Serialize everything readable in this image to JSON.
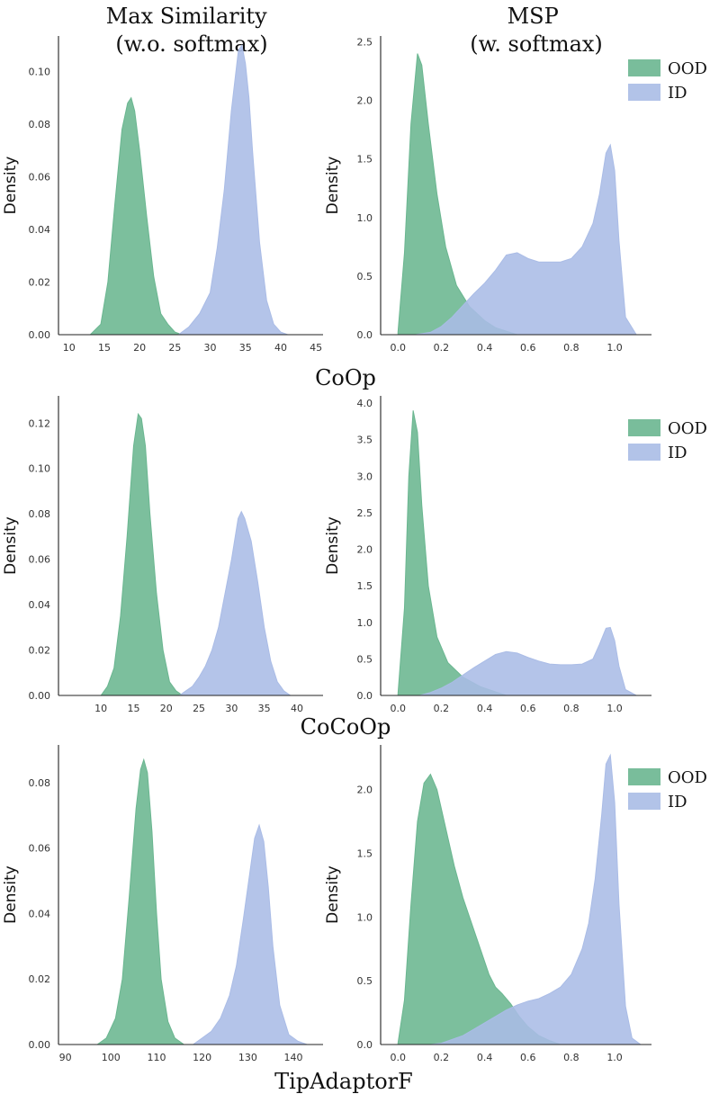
{
  "column_titles": [
    "Max Similarity\n(w.o. softmax)",
    "MSP\n(w. softmax)"
  ],
  "row_titles": [
    "CoOp",
    "CoCoOp",
    "TipAdaptorF"
  ],
  "colors": {
    "OOD": "#6ab690",
    "ID": "#aabce6"
  },
  "chart_data": [
    {
      "type": "area",
      "row": "CoOp",
      "column": "Max Similarity",
      "ylabel": "Density",
      "xlim": [
        8.5,
        46
      ],
      "ylim": [
        0,
        0.1135
      ],
      "xticks": [
        10,
        15,
        20,
        25,
        30,
        35,
        40,
        45
      ],
      "yticks": [
        0,
        0.02,
        0.04,
        0.06,
        0.08,
        0.1
      ],
      "ytick_labels": [
        "0.00",
        "0.02",
        "0.04",
        "0.06",
        "0.08",
        "0.10"
      ],
      "series": [
        {
          "name": "OOD",
          "x": [
            13,
            14.5,
            15.5,
            16.5,
            17.5,
            18.3,
            18.8,
            19.3,
            20,
            21,
            22,
            23,
            24,
            25,
            26
          ],
          "y": [
            0,
            0.004,
            0.02,
            0.05,
            0.078,
            0.088,
            0.09,
            0.085,
            0.07,
            0.045,
            0.022,
            0.008,
            0.004,
            0.001,
            0
          ]
        },
        {
          "name": "ID",
          "x": [
            25.5,
            27,
            28.5,
            30,
            31,
            32,
            33,
            34,
            34.5,
            35,
            35.5,
            36,
            37,
            38,
            39,
            40,
            41
          ],
          "y": [
            0,
            0.003,
            0.008,
            0.016,
            0.033,
            0.055,
            0.085,
            0.108,
            0.11,
            0.103,
            0.09,
            0.07,
            0.035,
            0.013,
            0.004,
            0.001,
            0
          ]
        }
      ]
    },
    {
      "type": "area",
      "row": "CoOp",
      "column": "MSP",
      "ylabel": "Density",
      "xlim": [
        -0.08,
        1.17
      ],
      "ylim": [
        0,
        2.55
      ],
      "xticks": [
        0,
        0.2,
        0.4,
        0.6,
        0.8,
        1.0
      ],
      "xtick_labels": [
        "0.0",
        "0.2",
        "0.4",
        "0.6",
        "0.8",
        "1.0"
      ],
      "yticks": [
        0,
        0.5,
        1.0,
        1.5,
        2.0,
        2.5
      ],
      "ytick_labels": [
        "0.0",
        "0.5",
        "1.0",
        "1.5",
        "2.0",
        "2.5"
      ],
      "legend": [
        "OOD",
        "ID"
      ],
      "legend_position": "top-right",
      "series": [
        {
          "name": "OOD",
          "x": [
            0,
            0.03,
            0.06,
            0.09,
            0.11,
            0.14,
            0.18,
            0.22,
            0.27,
            0.33,
            0.4,
            0.45,
            0.5,
            0.55
          ],
          "y": [
            0.02,
            0.7,
            1.8,
            2.4,
            2.3,
            1.8,
            1.2,
            0.75,
            0.42,
            0.24,
            0.12,
            0.06,
            0.03,
            0
          ]
        },
        {
          "name": "ID",
          "x": [
            0.08,
            0.15,
            0.2,
            0.25,
            0.3,
            0.35,
            0.4,
            0.45,
            0.5,
            0.55,
            0.6,
            0.65,
            0.7,
            0.75,
            0.8,
            0.85,
            0.9,
            0.93,
            0.96,
            0.98,
            1.0,
            1.02,
            1.05,
            1.1
          ],
          "y": [
            0,
            0.02,
            0.07,
            0.15,
            0.25,
            0.35,
            0.44,
            0.55,
            0.68,
            0.7,
            0.65,
            0.62,
            0.62,
            0.62,
            0.65,
            0.75,
            0.95,
            1.2,
            1.55,
            1.62,
            1.4,
            0.8,
            0.15,
            0
          ]
        }
      ]
    },
    {
      "type": "area",
      "row": "CoCoOp",
      "column": "Max Similarity",
      "ylabel": "Density",
      "xlim": [
        3.5,
        44
      ],
      "ylim": [
        0,
        0.132
      ],
      "xticks": [
        10,
        15,
        20,
        25,
        30,
        35,
        40
      ],
      "yticks": [
        0,
        0.02,
        0.04,
        0.06,
        0.08,
        0.1,
        0.12
      ],
      "ytick_labels": [
        "0.00",
        "0.02",
        "0.04",
        "0.06",
        "0.08",
        "0.10",
        "0.12"
      ],
      "series": [
        {
          "name": "OOD",
          "x": [
            10,
            11,
            12,
            13,
            14,
            15,
            15.7,
            16.2,
            16.8,
            17.5,
            18.5,
            19.5,
            20.5,
            21.5,
            22.5
          ],
          "y": [
            0,
            0.004,
            0.012,
            0.035,
            0.07,
            0.11,
            0.124,
            0.122,
            0.11,
            0.08,
            0.045,
            0.02,
            0.006,
            0.002,
            0
          ]
        },
        {
          "name": "ID",
          "x": [
            22,
            23,
            24,
            25,
            26,
            27,
            28,
            29,
            30,
            31,
            31.5,
            32,
            33,
            34,
            35,
            36,
            37,
            38,
            39
          ],
          "y": [
            0,
            0.002,
            0.004,
            0.008,
            0.013,
            0.02,
            0.03,
            0.045,
            0.06,
            0.078,
            0.081,
            0.078,
            0.068,
            0.05,
            0.03,
            0.015,
            0.006,
            0.002,
            0
          ]
        }
      ]
    },
    {
      "type": "area",
      "row": "CoCoOp",
      "column": "MSP",
      "ylabel": "Density",
      "xlim": [
        -0.08,
        1.17
      ],
      "ylim": [
        0,
        4.1
      ],
      "xticks": [
        0,
        0.2,
        0.4,
        0.6,
        0.8,
        1.0
      ],
      "xtick_labels": [
        "0.0",
        "0.2",
        "0.4",
        "0.6",
        "0.8",
        "1.0"
      ],
      "yticks": [
        0,
        0.5,
        1.0,
        1.5,
        2.0,
        2.5,
        3.0,
        3.5,
        4.0
      ],
      "ytick_labels": [
        "0.0",
        "0.5",
        "1.0",
        "1.5",
        "2.0",
        "2.5",
        "3.0",
        "3.5",
        "4.0"
      ],
      "legend": [
        "OOD",
        "ID"
      ],
      "legend_position": "top-right",
      "series": [
        {
          "name": "OOD",
          "x": [
            0,
            0.03,
            0.05,
            0.07,
            0.09,
            0.11,
            0.14,
            0.18,
            0.23,
            0.3,
            0.38,
            0.45,
            0.5
          ],
          "y": [
            0.02,
            1.2,
            3.0,
            3.9,
            3.6,
            2.6,
            1.5,
            0.8,
            0.45,
            0.25,
            0.12,
            0.05,
            0
          ]
        },
        {
          "name": "ID",
          "x": [
            0.1,
            0.15,
            0.2,
            0.25,
            0.3,
            0.35,
            0.4,
            0.45,
            0.5,
            0.55,
            0.6,
            0.65,
            0.7,
            0.75,
            0.8,
            0.85,
            0.9,
            0.93,
            0.96,
            0.98,
            1.0,
            1.02,
            1.05,
            1.1
          ],
          "y": [
            0,
            0.04,
            0.1,
            0.18,
            0.28,
            0.38,
            0.47,
            0.56,
            0.6,
            0.58,
            0.52,
            0.47,
            0.43,
            0.42,
            0.42,
            0.43,
            0.5,
            0.7,
            0.92,
            0.93,
            0.75,
            0.4,
            0.08,
            0
          ]
        }
      ]
    },
    {
      "type": "area",
      "row": "TipAdaptorF",
      "column": "Max Similarity",
      "ylabel": "Density",
      "xlim": [
        88.5,
        146.5
      ],
      "ylim": [
        0,
        0.0915
      ],
      "xticks": [
        90,
        100,
        110,
        120,
        130,
        140
      ],
      "yticks": [
        0,
        0.02,
        0.04,
        0.06,
        0.08
      ],
      "ytick_labels": [
        "0.00",
        "0.02",
        "0.04",
        "0.06",
        "0.08"
      ],
      "series": [
        {
          "name": "OOD",
          "x": [
            97,
            99,
            101,
            102.5,
            104,
            105.5,
            106.5,
            107.2,
            108,
            109,
            110,
            111,
            112.5,
            114,
            116
          ],
          "y": [
            0,
            0.002,
            0.008,
            0.02,
            0.045,
            0.072,
            0.084,
            0.087,
            0.083,
            0.065,
            0.04,
            0.02,
            0.007,
            0.002,
            0
          ]
        },
        {
          "name": "ID",
          "x": [
            118,
            120,
            122,
            124,
            126,
            127.5,
            129,
            130.5,
            131.5,
            132.5,
            133.5,
            134.5,
            135.5,
            137,
            139,
            141,
            143
          ],
          "y": [
            0,
            0.002,
            0.004,
            0.008,
            0.015,
            0.024,
            0.038,
            0.053,
            0.063,
            0.067,
            0.062,
            0.048,
            0.03,
            0.012,
            0.003,
            0.001,
            0
          ]
        }
      ]
    },
    {
      "type": "area",
      "row": "TipAdaptorF",
      "column": "MSP",
      "ylabel": "Density",
      "xlim": [
        -0.08,
        1.17
      ],
      "ylim": [
        0,
        2.35
      ],
      "xticks": [
        0,
        0.2,
        0.4,
        0.6,
        0.8,
        1.0
      ],
      "xtick_labels": [
        "0.0",
        "0.2",
        "0.4",
        "0.6",
        "0.8",
        "1.0"
      ],
      "yticks": [
        0,
        0.5,
        1.0,
        1.5,
        2.0
      ],
      "ytick_labels": [
        "0.0",
        "0.5",
        "1.0",
        "1.5",
        "2.0"
      ],
      "legend": [
        "OOD",
        "ID"
      ],
      "legend_position": "top-right",
      "series": [
        {
          "name": "OOD",
          "x": [
            0,
            0.03,
            0.06,
            0.09,
            0.12,
            0.15,
            0.18,
            0.22,
            0.26,
            0.3,
            0.34,
            0.38,
            0.42,
            0.45,
            0.48,
            0.52,
            0.56,
            0.6,
            0.65,
            0.7,
            0.75
          ],
          "y": [
            0.01,
            0.35,
            1.1,
            1.75,
            2.05,
            2.12,
            2.0,
            1.7,
            1.4,
            1.15,
            0.95,
            0.75,
            0.55,
            0.45,
            0.4,
            0.32,
            0.22,
            0.14,
            0.07,
            0.03,
            0
          ]
        },
        {
          "name": "ID",
          "x": [
            0.15,
            0.2,
            0.25,
            0.3,
            0.35,
            0.4,
            0.45,
            0.5,
            0.55,
            0.6,
            0.65,
            0.7,
            0.75,
            0.8,
            0.85,
            0.88,
            0.91,
            0.94,
            0.96,
            0.98,
            1.0,
            1.02,
            1.05,
            1.08,
            1.12
          ],
          "y": [
            0,
            0.01,
            0.04,
            0.07,
            0.12,
            0.17,
            0.22,
            0.27,
            0.31,
            0.34,
            0.36,
            0.4,
            0.45,
            0.55,
            0.75,
            0.95,
            1.3,
            1.8,
            2.2,
            2.27,
            1.9,
            1.1,
            0.3,
            0.05,
            0
          ]
        }
      ]
    }
  ]
}
